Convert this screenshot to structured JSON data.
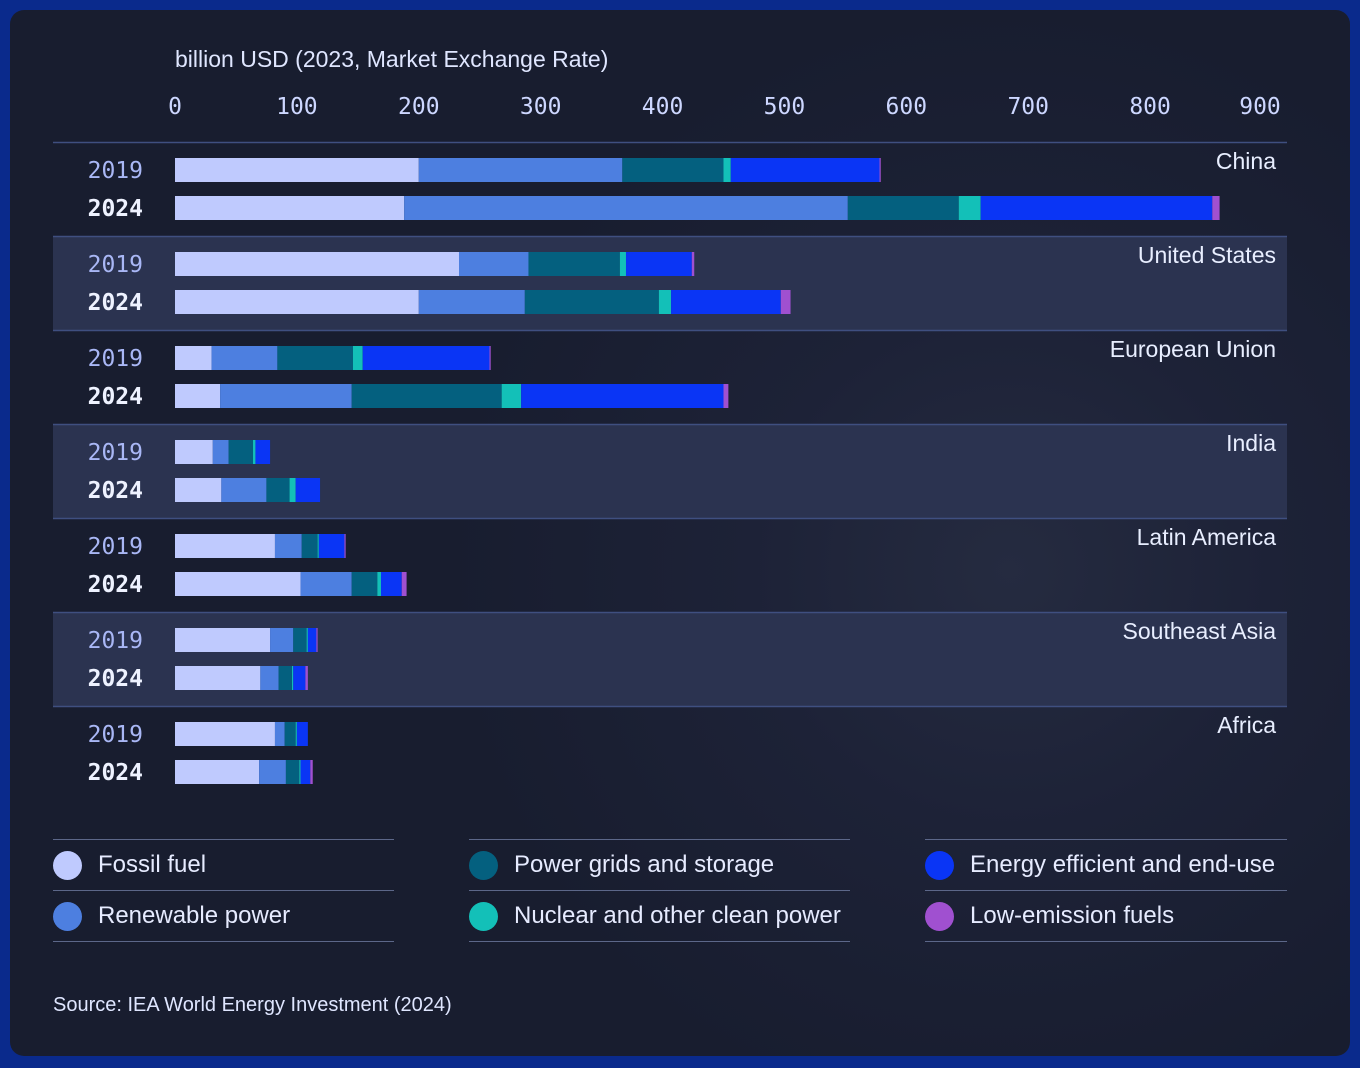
{
  "colors": {
    "fossil": "#bfcafe",
    "renewable": "#4d7fe0",
    "grids": "#04607f",
    "nuclear": "#13c0b8",
    "efficiency": "#0a35f5",
    "lowemission": "#a050d0",
    "axis_text": "#cdd7ff",
    "year_old": "#a9b7f5",
    "year_new": "#eef2ff",
    "region_text": "#e8eeff",
    "band": "#2b3350",
    "divider": "#3f4f80"
  },
  "chart_data": {
    "type": "bar",
    "orientation": "horizontal",
    "stacked": true,
    "unit_label": "billion USD (2023, Market Exchange Rate)",
    "xlim": [
      0,
      900
    ],
    "xticks": [
      "0",
      "100",
      "200",
      "300",
      "400",
      "500",
      "600",
      "700",
      "800",
      "900"
    ],
    "series_names": [
      "Fossil fuel",
      "Renewable power",
      "Power grids and storage",
      "Nuclear and other clean power",
      "Energy efficient and end-use",
      "Low-emission fuels"
    ],
    "regions": [
      {
        "name": "China",
        "rows": [
          {
            "year": "2019",
            "values": [
              200,
              167,
              83,
              6,
              122,
              1
            ]
          },
          {
            "year": "2024",
            "values": [
              188,
              364,
              91,
              18,
              190,
              6
            ]
          }
        ]
      },
      {
        "name": "United States",
        "rows": [
          {
            "year": "2019",
            "values": [
              233,
              57,
              75,
              5,
              54,
              2
            ]
          },
          {
            "year": "2024",
            "values": [
              200,
              87,
              110,
              10,
              90,
              8
            ]
          }
        ]
      },
      {
        "name": "European Union",
        "rows": [
          {
            "year": "2019",
            "values": [
              30,
              54,
              62,
              8,
              104,
              1
            ]
          },
          {
            "year": "2024",
            "values": [
              37,
              108,
              123,
              16,
              166,
              4
            ]
          }
        ]
      },
      {
        "name": "India",
        "rows": [
          {
            "year": "2019",
            "values": [
              31,
              13,
              20,
              2,
              12,
              0
            ]
          },
          {
            "year": "2024",
            "values": [
              38,
              37,
              19,
              5,
              20,
              0
            ]
          }
        ]
      },
      {
        "name": "Latin America",
        "rows": [
          {
            "year": "2019",
            "values": [
              82,
              22,
              13,
              1,
              21,
              1
            ]
          },
          {
            "year": "2024",
            "values": [
              103,
              42,
              21,
              3,
              17,
              4
            ]
          }
        ]
      },
      {
        "name": "Southeast Asia",
        "rows": [
          {
            "year": "2019",
            "values": [
              78,
              19,
              11,
              1,
              7,
              1
            ]
          },
          {
            "year": "2024",
            "values": [
              70,
              15,
              11,
              1,
              10,
              2
            ]
          }
        ]
      },
      {
        "name": "Africa",
        "rows": [
          {
            "year": "2019",
            "values": [
              82,
              8,
              9,
              1,
              9,
              0
            ]
          },
          {
            "year": "2024",
            "values": [
              69,
              22,
              11,
              1,
              8,
              2
            ]
          }
        ]
      }
    ]
  },
  "legend": [
    {
      "label": "Fossil fuel",
      "color": "#bfcafe"
    },
    {
      "label": "Renewable power",
      "color": "#4d7fe0"
    },
    {
      "label": "Power grids and storage",
      "color": "#04607f"
    },
    {
      "label": "Nuclear and other clean power",
      "color": "#13c0b8"
    },
    {
      "label": "Energy efficient and end-use",
      "color": "#0a35f5"
    },
    {
      "label": "Low-emission fuels",
      "color": "#a050d0"
    }
  ],
  "source": "Source: IEA World Energy Investment (2024)"
}
